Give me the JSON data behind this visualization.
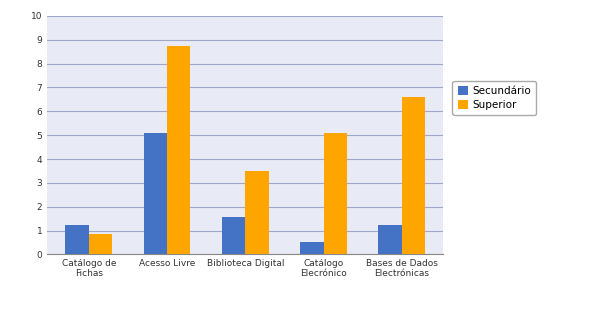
{
  "categories": [
    "Catálogo de\nFichas",
    "Acesso Livre",
    "Biblioteca Digital",
    "Catálogo\nElecrónico",
    "Bases de Dados\nElectrónicas"
  ],
  "secundario": [
    1.25,
    5.1,
    1.55,
    0.5,
    1.25
  ],
  "superior": [
    0.85,
    8.75,
    3.5,
    5.1,
    6.6
  ],
  "bar_color_sec": "#4472c4",
  "bar_color_sup": "#ffa500",
  "ylim": [
    0,
    10
  ],
  "yticks": [
    0,
    1,
    2,
    3,
    4,
    5,
    6,
    7,
    8,
    9,
    10
  ],
  "legend_sec": "Secundário",
  "legend_sup": "Superior",
  "background_color": "#ffffff",
  "plot_bg_color": "#e8eaf6",
  "grid_color": "#9fa8c9",
  "bar_width": 0.3,
  "fontsize_tick": 6.5,
  "fontsize_legend": 7.5
}
